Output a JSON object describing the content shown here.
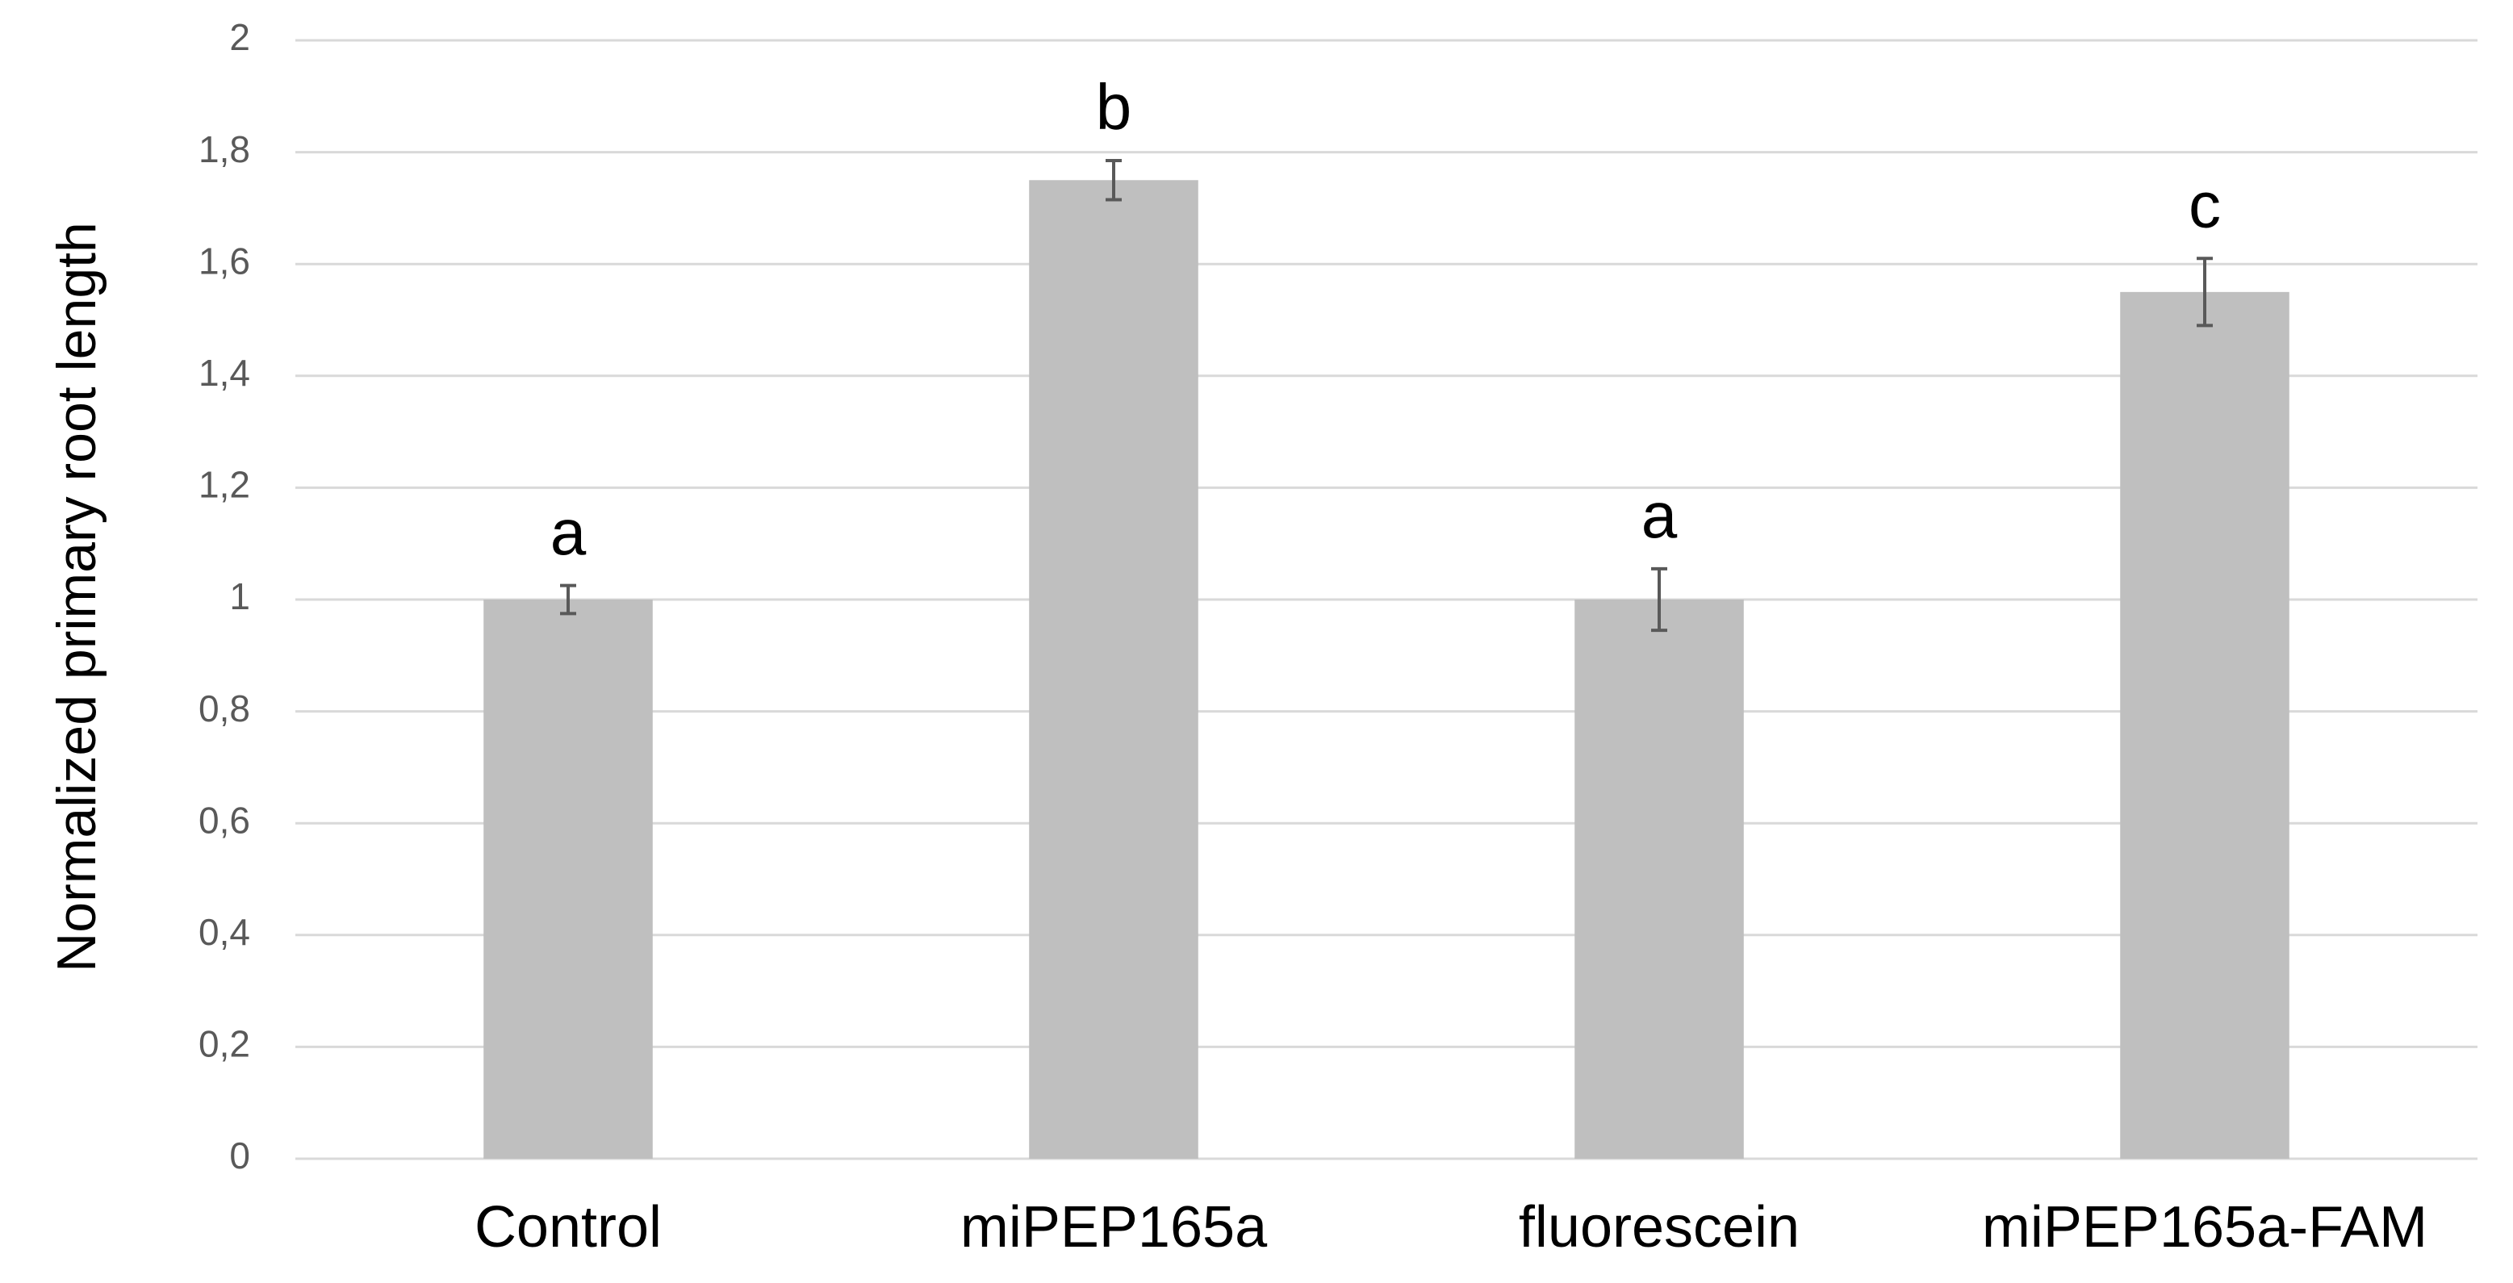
{
  "chart_data": {
    "type": "bar",
    "y_label": "Normalized primary root length",
    "categories": [
      "Control",
      "miPEP165a",
      "fluorescein",
      "miPEP165a-FAM"
    ],
    "values": [
      1,
      1.75,
      1,
      1.55
    ],
    "errors": [
      0.025,
      0.035,
      0.055,
      0.06
    ],
    "letters": [
      "a",
      "b",
      "a",
      "c"
    ],
    "color": "#bfbfbf",
    "ylim": [
      0,
      2
    ],
    "yticks": [
      0,
      {
        "value": 0.2,
        "label": "0,2"
      },
      {
        "value": 0.4,
        "label": "0,4"
      },
      {
        "value": 0.6,
        "label": "0,6"
      },
      {
        "value": 0.8,
        "label": "0,8"
      },
      1,
      {
        "value": 1.2,
        "label": "1,2"
      },
      {
        "value": 1.4,
        "label": "1,4"
      },
      {
        "value": 1.6,
        "label": "1,6"
      },
      {
        "value": 1.8,
        "label": "1,8"
      },
      2
    ],
    "grid": true
  }
}
